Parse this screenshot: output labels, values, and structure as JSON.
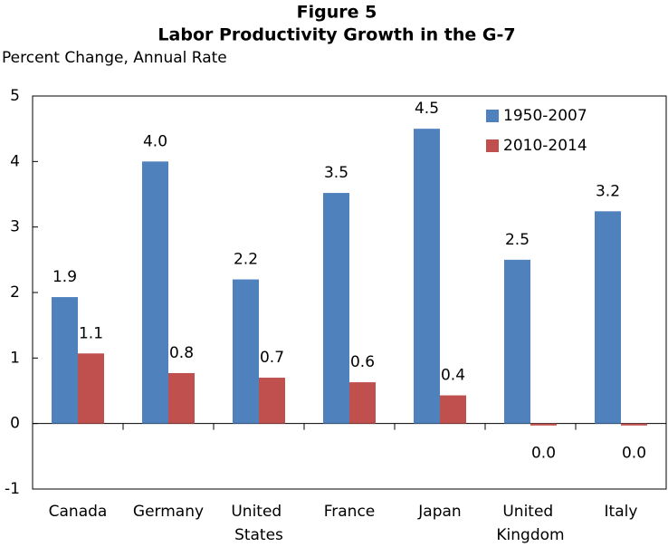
{
  "chart_data": {
    "type": "bar",
    "title": "Figure 5",
    "subtitle": "Labor Productivity Growth in the G-7",
    "y_label": "Percent Change, Annual Rate",
    "categories": [
      "Canada",
      "Germany",
      "United States",
      "France",
      "Japan",
      "United Kingdom",
      "Italy"
    ],
    "series": [
      {
        "name": "1950-2007",
        "color": "#4f81bd",
        "values": [
          1.93,
          4.0,
          2.2,
          3.52,
          4.5,
          2.5,
          3.24
        ],
        "value_labels": [
          "1.9",
          "4.0",
          "2.2",
          "3.5",
          "4.5",
          "2.5",
          "3.2"
        ]
      },
      {
        "name": "2010-2014",
        "color": "#c0504d",
        "values": [
          1.07,
          0.77,
          0.7,
          0.63,
          0.43,
          -0.03,
          -0.03
        ],
        "value_labels": [
          "1.1",
          "0.8",
          "0.7",
          "0.6",
          "0.4",
          "0.0",
          "0.0"
        ]
      }
    ],
    "ylim": [
      -1,
      5
    ],
    "yticks": [
      -1,
      0,
      1,
      2,
      3,
      4,
      5
    ],
    "legend": "upper right"
  }
}
